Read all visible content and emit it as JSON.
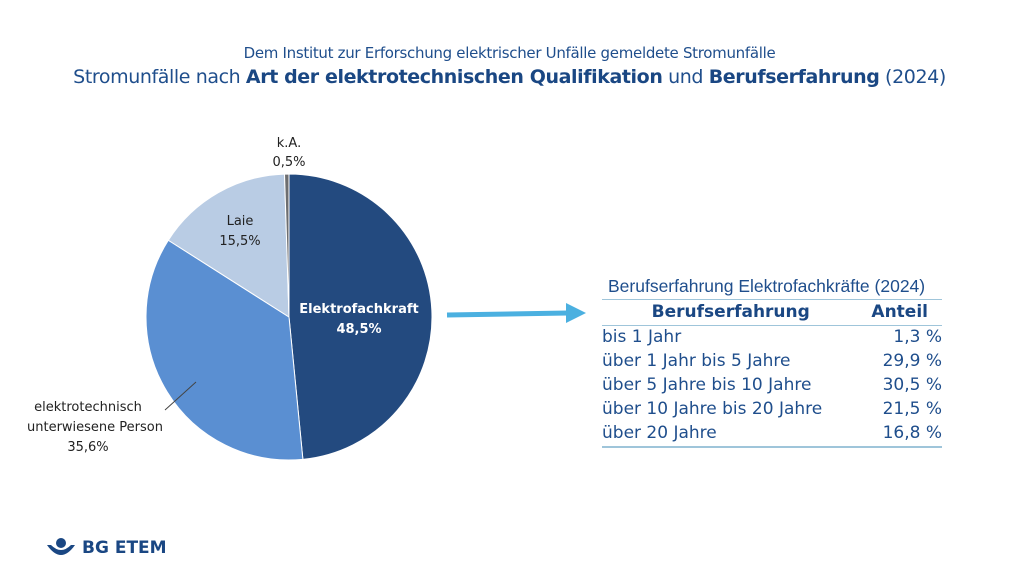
{
  "header": {
    "subtitle": "Dem Institut zur Erforschung elektrischer Unfälle gemeldete Stromunfälle",
    "title_parts": [
      "Stromunfälle nach ",
      "Art der elektrotechnischen Qualifikation",
      " und ",
      "Berufserfahrung",
      " (2024)"
    ]
  },
  "chart_data": {
    "type": "pie",
    "title": "",
    "slices": [
      {
        "label": "Elektrofachkraft",
        "value": 48.5,
        "display": "48,5%",
        "color": "#234a7f"
      },
      {
        "label": "elektrotechnisch unterwiesene Person",
        "value": 35.6,
        "display": "35,6%",
        "color": "#5a8fd2"
      },
      {
        "label": "Laie",
        "value": 15.5,
        "display": "15,5%",
        "color": "#b9cce4"
      },
      {
        "label": "k.A.",
        "value": 0.5,
        "display": "0,5%",
        "color": "#6d6e70"
      }
    ],
    "label_lines": {
      "ep_1": "elektrotechnisch",
      "ep_2": "unterwiesene  Person"
    }
  },
  "table": {
    "title": "Berufserfahrung Elektrofachkräfte (2024)",
    "headers": [
      "Berufserfahrung",
      "Anteil"
    ],
    "rows": [
      [
        "bis 1 Jahr",
        "1,3 %"
      ],
      [
        "über 1 Jahr bis 5 Jahre",
        "29,9 %"
      ],
      [
        "über 5 Jahre bis 10 Jahre",
        "30,5 %"
      ],
      [
        "über 10 Jahre bis 20 Jahre",
        "21,5 %"
      ],
      [
        "über 20 Jahre",
        "16,8 %"
      ]
    ]
  },
  "arrow_color": "#4bb0e0",
  "logo": {
    "text": "BG ETEM"
  }
}
